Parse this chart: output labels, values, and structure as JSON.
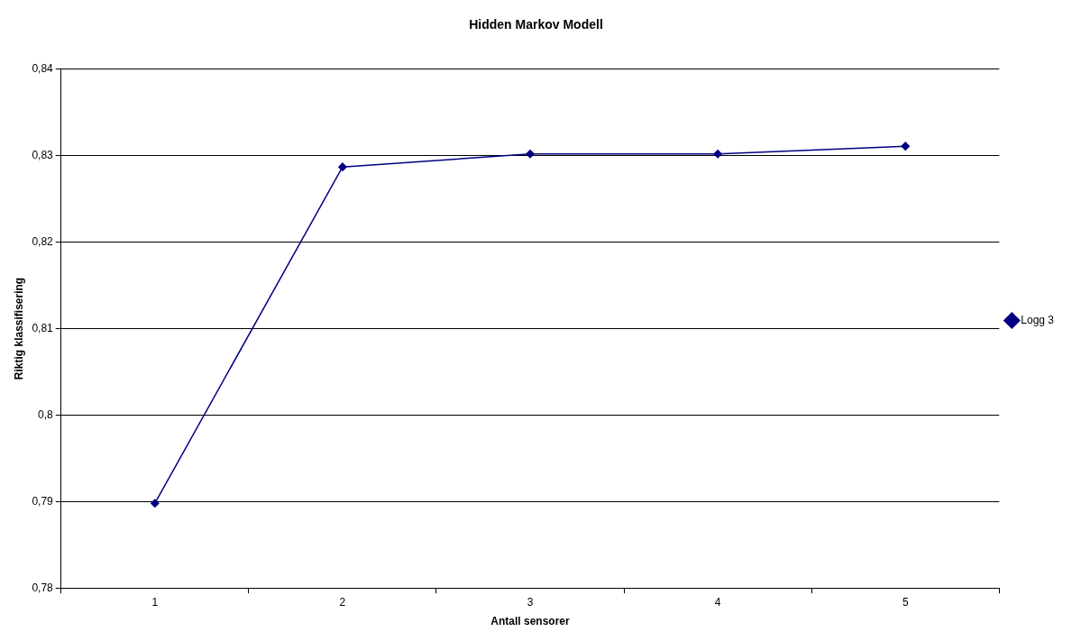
{
  "chart_data": {
    "type": "line",
    "title": "Hidden Markov Modell",
    "xlabel": "Antall sensorer",
    "ylabel": "Riktig klassifisering",
    "categories": [
      "1",
      "2",
      "3",
      "4",
      "5"
    ],
    "series": [
      {
        "name": "Logg 3",
        "color": "#000080",
        "values": [
          0.7898,
          0.8287,
          0.8302,
          0.8302,
          0.8311
        ]
      }
    ],
    "ylim": [
      0.78,
      0.84
    ],
    "yticks": [
      {
        "value": 0.78,
        "label": "0,78"
      },
      {
        "value": 0.79,
        "label": "0,79"
      },
      {
        "value": 0.8,
        "label": "0,8"
      },
      {
        "value": 0.81,
        "label": "0,81"
      },
      {
        "value": 0.82,
        "label": "0,82"
      },
      {
        "value": 0.83,
        "label": "0,83"
      },
      {
        "value": 0.84,
        "label": "0,84"
      }
    ],
    "grid": "y",
    "legend": "right",
    "marker": "diamond",
    "line_style": "solid"
  }
}
